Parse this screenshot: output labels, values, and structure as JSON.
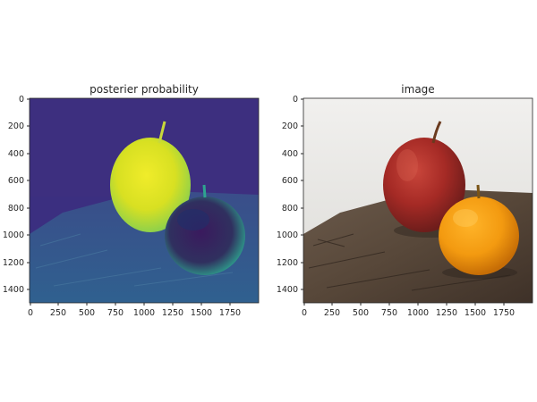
{
  "figure": {
    "panels": [
      {
        "title": "posterier probability",
        "xticks": [
          "0",
          "250",
          "500",
          "750",
          "1000",
          "1250",
          "1500",
          "1750"
        ],
        "yticks": [
          "0",
          "200",
          "400",
          "600",
          "800",
          "1000",
          "1200",
          "1400"
        ]
      },
      {
        "title": "image",
        "xticks": [
          "0",
          "250",
          "500",
          "750",
          "1000",
          "1250",
          "1500",
          "1750"
        ],
        "yticks": [
          "0",
          "200",
          "400",
          "600",
          "800",
          "1000",
          "1200",
          "1400"
        ]
      }
    ]
  },
  "colors": {
    "viridis_low": "#3b2f80",
    "viridis_mid": "#2c7f8e",
    "viridis_high": "#e4e419",
    "apple_red": "#b82b26",
    "orange": "#f29a12",
    "wall": "#ecebe8",
    "wood": "#5b4a3c"
  }
}
